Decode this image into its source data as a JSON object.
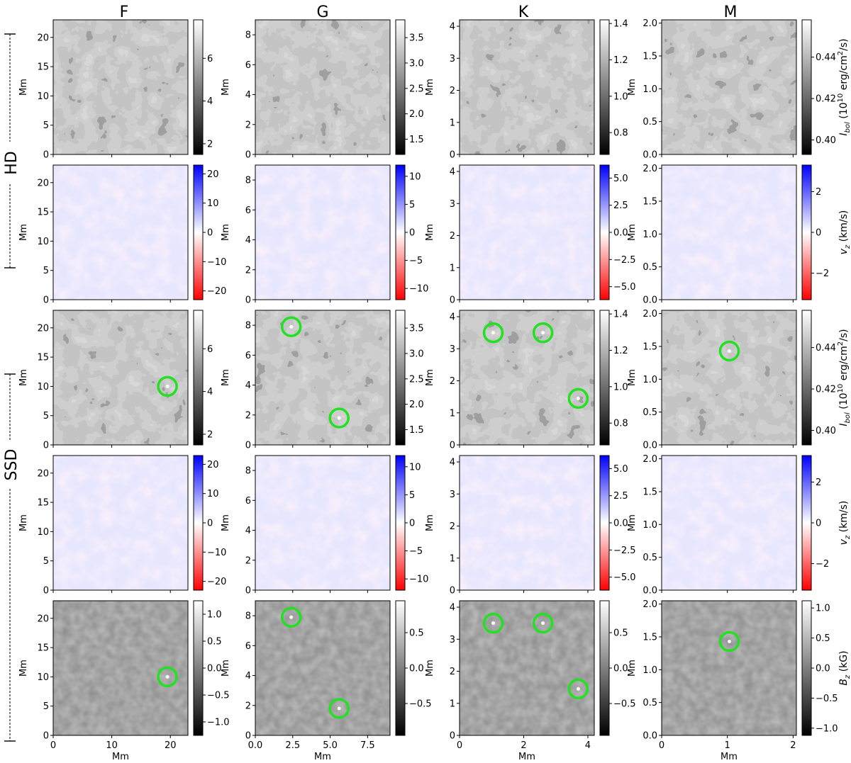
{
  "figure": {
    "column_titles": [
      "F",
      "G",
      "K",
      "M"
    ],
    "row_group_labels": [
      "HD",
      "SSD"
    ],
    "xlabel": "Mm",
    "ylabel": "Mm",
    "colorbar_labels": {
      "intensity": "I_bol (10^10 erg/cm^2/s)",
      "velocity": "v_z (km/s)",
      "field": "B_z (kG)"
    }
  },
  "colors": {
    "marker_circle": "#22e022",
    "velocity_up": "#1a1aff",
    "velocity_down": "#ff1a1a"
  },
  "chart_data": [
    {
      "type": "heatmap",
      "column": "F",
      "row": 1,
      "group": "HD",
      "quantity": "intensity",
      "xlim": [
        0,
        23
      ],
      "ylim": [
        0,
        23
      ],
      "x_ticks": [
        0,
        10,
        20
      ],
      "y_ticks": [
        0,
        5,
        10,
        15,
        20
      ],
      "colorbar": {
        "range": [
          1.5,
          7.8
        ],
        "ticks": [
          2,
          4,
          6
        ],
        "cmap": "gray"
      },
      "markers": []
    },
    {
      "type": "heatmap",
      "column": "G",
      "row": 1,
      "group": "HD",
      "quantity": "intensity",
      "xlim": [
        0,
        9
      ],
      "ylim": [
        0,
        9
      ],
      "x_ticks": [
        0,
        2.5,
        5.0,
        7.5
      ],
      "y_ticks": [
        0,
        2,
        4,
        6,
        8
      ],
      "colorbar": {
        "range": [
          1.2,
          3.85
        ],
        "ticks": [
          1.5,
          2.0,
          2.5,
          3.0,
          3.5
        ],
        "cmap": "gray"
      },
      "markers": []
    },
    {
      "type": "heatmap",
      "column": "K",
      "row": 1,
      "group": "HD",
      "quantity": "intensity",
      "xlim": [
        0,
        4.2
      ],
      "ylim": [
        0,
        4.2
      ],
      "x_ticks": [
        0,
        2,
        4
      ],
      "y_ticks": [
        0,
        1,
        2,
        3,
        4
      ],
      "colorbar": {
        "range": [
          0.68,
          1.42
        ],
        "ticks": [
          0.8,
          1.0,
          1.2,
          1.4
        ],
        "cmap": "gray"
      },
      "markers": []
    },
    {
      "type": "heatmap",
      "column": "M",
      "row": 1,
      "group": "HD",
      "quantity": "intensity",
      "xlim": [
        0,
        2.05
      ],
      "ylim": [
        0,
        2.05
      ],
      "x_ticks": [
        0,
        1,
        2
      ],
      "y_ticks": [
        0.0,
        0.5,
        1.0,
        1.5,
        2.0
      ],
      "colorbar": {
        "range": [
          0.393,
          0.458
        ],
        "ticks": [
          0.4,
          0.42,
          0.44
        ],
        "cmap": "gray"
      },
      "markers": []
    },
    {
      "type": "heatmap",
      "column": "F",
      "row": 2,
      "group": "HD",
      "quantity": "velocity",
      "xlim": [
        0,
        23
      ],
      "ylim": [
        0,
        23
      ],
      "x_ticks": [
        0,
        10,
        20
      ],
      "y_ticks": [
        0,
        5,
        10,
        15,
        20
      ],
      "colorbar": {
        "range": [
          -23,
          23
        ],
        "ticks": [
          -20,
          -10,
          0,
          10,
          20
        ],
        "cmap": "bwr"
      },
      "markers": []
    },
    {
      "type": "heatmap",
      "column": "G",
      "row": 2,
      "group": "HD",
      "quantity": "velocity",
      "xlim": [
        0,
        9
      ],
      "ylim": [
        0,
        9
      ],
      "x_ticks": [
        0,
        2.5,
        5.0,
        7.5
      ],
      "y_ticks": [
        0,
        2,
        4,
        6,
        8
      ],
      "colorbar": {
        "range": [
          -12,
          12
        ],
        "ticks": [
          -10,
          -5,
          0,
          5,
          10
        ],
        "cmap": "bwr"
      },
      "markers": []
    },
    {
      "type": "heatmap",
      "column": "K",
      "row": 2,
      "group": "HD",
      "quantity": "velocity",
      "xlim": [
        0,
        4.2
      ],
      "ylim": [
        0,
        4.2
      ],
      "x_ticks": [
        0,
        2,
        4
      ],
      "y_ticks": [
        0,
        1,
        2,
        3,
        4
      ],
      "colorbar": {
        "range": [
          -6.2,
          6.2
        ],
        "ticks": [
          -5.0,
          -2.5,
          0.0,
          2.5,
          5.0
        ],
        "cmap": "bwr"
      },
      "markers": []
    },
    {
      "type": "heatmap",
      "column": "M",
      "row": 2,
      "group": "HD",
      "quantity": "velocity",
      "xlim": [
        0,
        2.05
      ],
      "ylim": [
        0,
        2.05
      ],
      "x_ticks": [
        0,
        1,
        2
      ],
      "y_ticks": [
        0.0,
        0.5,
        1.0,
        1.5,
        2.0
      ],
      "colorbar": {
        "range": [
          -3.3,
          3.3
        ],
        "ticks": [
          -2,
          0,
          2
        ],
        "cmap": "bwr"
      },
      "markers": []
    },
    {
      "type": "heatmap",
      "column": "F",
      "row": 3,
      "group": "SSD",
      "quantity": "intensity",
      "xlim": [
        0,
        23
      ],
      "ylim": [
        0,
        23
      ],
      "x_ticks": [
        0,
        10,
        20
      ],
      "y_ticks": [
        0,
        5,
        10,
        15,
        20
      ],
      "colorbar": {
        "range": [
          1.5,
          7.8
        ],
        "ticks": [
          2,
          4,
          6
        ],
        "cmap": "gray"
      },
      "markers": [
        [
          19.5,
          10
        ]
      ]
    },
    {
      "type": "heatmap",
      "column": "G",
      "row": 3,
      "group": "SSD",
      "quantity": "intensity",
      "xlim": [
        0,
        9
      ],
      "ylim": [
        0,
        9
      ],
      "x_ticks": [
        0,
        2.5,
        5.0,
        7.5
      ],
      "y_ticks": [
        0,
        2,
        4,
        6,
        8
      ],
      "colorbar": {
        "range": [
          1.2,
          3.85
        ],
        "ticks": [
          1.5,
          2.0,
          2.5,
          3.0,
          3.5
        ],
        "cmap": "gray"
      },
      "markers": [
        [
          2.4,
          7.9
        ],
        [
          5.6,
          1.8
        ]
      ]
    },
    {
      "type": "heatmap",
      "column": "K",
      "row": 3,
      "group": "SSD",
      "quantity": "intensity",
      "xlim": [
        0,
        4.2
      ],
      "ylim": [
        0,
        4.2
      ],
      "x_ticks": [
        0,
        2,
        4
      ],
      "y_ticks": [
        0,
        1,
        2,
        3,
        4
      ],
      "colorbar": {
        "range": [
          0.68,
          1.42
        ],
        "ticks": [
          0.8,
          1.0,
          1.2,
          1.4
        ],
        "cmap": "gray"
      },
      "markers": [
        [
          1.05,
          3.5
        ],
        [
          2.6,
          3.5
        ],
        [
          3.7,
          1.45
        ]
      ]
    },
    {
      "type": "heatmap",
      "column": "M",
      "row": 3,
      "group": "SSD",
      "quantity": "intensity",
      "xlim": [
        0,
        2.05
      ],
      "ylim": [
        0,
        2.05
      ],
      "x_ticks": [
        0,
        1,
        2
      ],
      "y_ticks": [
        0.0,
        0.5,
        1.0,
        1.5,
        2.0
      ],
      "colorbar": {
        "range": [
          0.393,
          0.458
        ],
        "ticks": [
          0.4,
          0.42,
          0.44
        ],
        "cmap": "gray"
      },
      "markers": [
        [
          1.03,
          1.43
        ]
      ]
    },
    {
      "type": "heatmap",
      "column": "F",
      "row": 4,
      "group": "SSD",
      "quantity": "velocity",
      "xlim": [
        0,
        23
      ],
      "ylim": [
        0,
        23
      ],
      "x_ticks": [
        0,
        10,
        20
      ],
      "y_ticks": [
        0,
        5,
        10,
        15,
        20
      ],
      "colorbar": {
        "range": [
          -23,
          23
        ],
        "ticks": [
          -20,
          -10,
          0,
          10,
          20
        ],
        "cmap": "bwr"
      },
      "markers": []
    },
    {
      "type": "heatmap",
      "column": "G",
      "row": 4,
      "group": "SSD",
      "quantity": "velocity",
      "xlim": [
        0,
        9
      ],
      "ylim": [
        0,
        9
      ],
      "x_ticks": [
        0,
        2.5,
        5.0,
        7.5
      ],
      "y_ticks": [
        0,
        2,
        4,
        6,
        8
      ],
      "colorbar": {
        "range": [
          -12,
          12
        ],
        "ticks": [
          -10,
          -5,
          0,
          5,
          10
        ],
        "cmap": "bwr"
      },
      "markers": []
    },
    {
      "type": "heatmap",
      "column": "K",
      "row": 4,
      "group": "SSD",
      "quantity": "velocity",
      "xlim": [
        0,
        4.2
      ],
      "ylim": [
        0,
        4.2
      ],
      "x_ticks": [
        0,
        2,
        4
      ],
      "y_ticks": [
        0,
        1,
        2,
        3,
        4
      ],
      "colorbar": {
        "range": [
          -6.2,
          6.2
        ],
        "ticks": [
          -5.0,
          -2.5,
          0.0,
          2.5,
          5.0
        ],
        "cmap": "bwr"
      },
      "markers": []
    },
    {
      "type": "heatmap",
      "column": "M",
      "row": 4,
      "group": "SSD",
      "quantity": "velocity",
      "xlim": [
        0,
        2.05
      ],
      "ylim": [
        0,
        2.05
      ],
      "x_ticks": [
        0,
        1,
        2
      ],
      "y_ticks": [
        0.0,
        0.5,
        1.0,
        1.5,
        2.0
      ],
      "colorbar": {
        "range": [
          -3.3,
          3.3
        ],
        "ticks": [
          -2,
          0,
          2
        ],
        "cmap": "bwr"
      },
      "markers": []
    },
    {
      "type": "heatmap",
      "column": "F",
      "row": 5,
      "group": "SSD",
      "quantity": "field",
      "xlim": [
        0,
        23
      ],
      "ylim": [
        0,
        23
      ],
      "x_ticks": [
        0,
        10,
        20
      ],
      "y_ticks": [
        0,
        5,
        10,
        15,
        20
      ],
      "colorbar": {
        "range": [
          -1.25,
          1.25
        ],
        "ticks": [
          -1.0,
          -0.5,
          0.0,
          0.5,
          1.0
        ],
        "cmap": "gray"
      },
      "markers": [
        [
          19.5,
          10
        ]
      ]
    },
    {
      "type": "heatmap",
      "column": "G",
      "row": 5,
      "group": "SSD",
      "quantity": "field",
      "xlim": [
        0,
        9
      ],
      "ylim": [
        0,
        9
      ],
      "x_ticks": [
        0,
        2.5,
        5.0,
        7.5
      ],
      "y_ticks": [
        0,
        2,
        4,
        6,
        8
      ],
      "colorbar": {
        "range": [
          -0.95,
          0.95
        ],
        "ticks": [
          -0.5,
          0.0,
          0.5
        ],
        "cmap": "gray"
      },
      "markers": [
        [
          2.4,
          7.9
        ],
        [
          5.6,
          1.8
        ]
      ]
    },
    {
      "type": "heatmap",
      "column": "K",
      "row": 5,
      "group": "SSD",
      "quantity": "field",
      "xlim": [
        0,
        4.2
      ],
      "ylim": [
        0,
        4.2
      ],
      "x_ticks": [
        0,
        2,
        4
      ],
      "y_ticks": [
        0,
        1,
        2,
        3,
        4
      ],
      "colorbar": {
        "range": [
          -0.95,
          0.95
        ],
        "ticks": [
          -0.5,
          0.0,
          0.5
        ],
        "cmap": "gray"
      },
      "markers": [
        [
          1.05,
          3.5
        ],
        [
          2.6,
          3.5
        ],
        [
          3.7,
          1.45
        ]
      ]
    },
    {
      "type": "heatmap",
      "column": "M",
      "row": 5,
      "group": "SSD",
      "quantity": "field",
      "xlim": [
        0,
        2.05
      ],
      "ylim": [
        0,
        2.05
      ],
      "x_ticks": [
        0,
        1,
        2
      ],
      "y_ticks": [
        0.0,
        0.5,
        1.0,
        1.5,
        2.0
      ],
      "colorbar": {
        "range": [
          -1.12,
          1.12
        ],
        "ticks": [
          -1.0,
          -0.5,
          0.0,
          0.5,
          1.0
        ],
        "cmap": "gray"
      },
      "markers": [
        [
          1.03,
          1.43
        ]
      ]
    }
  ]
}
